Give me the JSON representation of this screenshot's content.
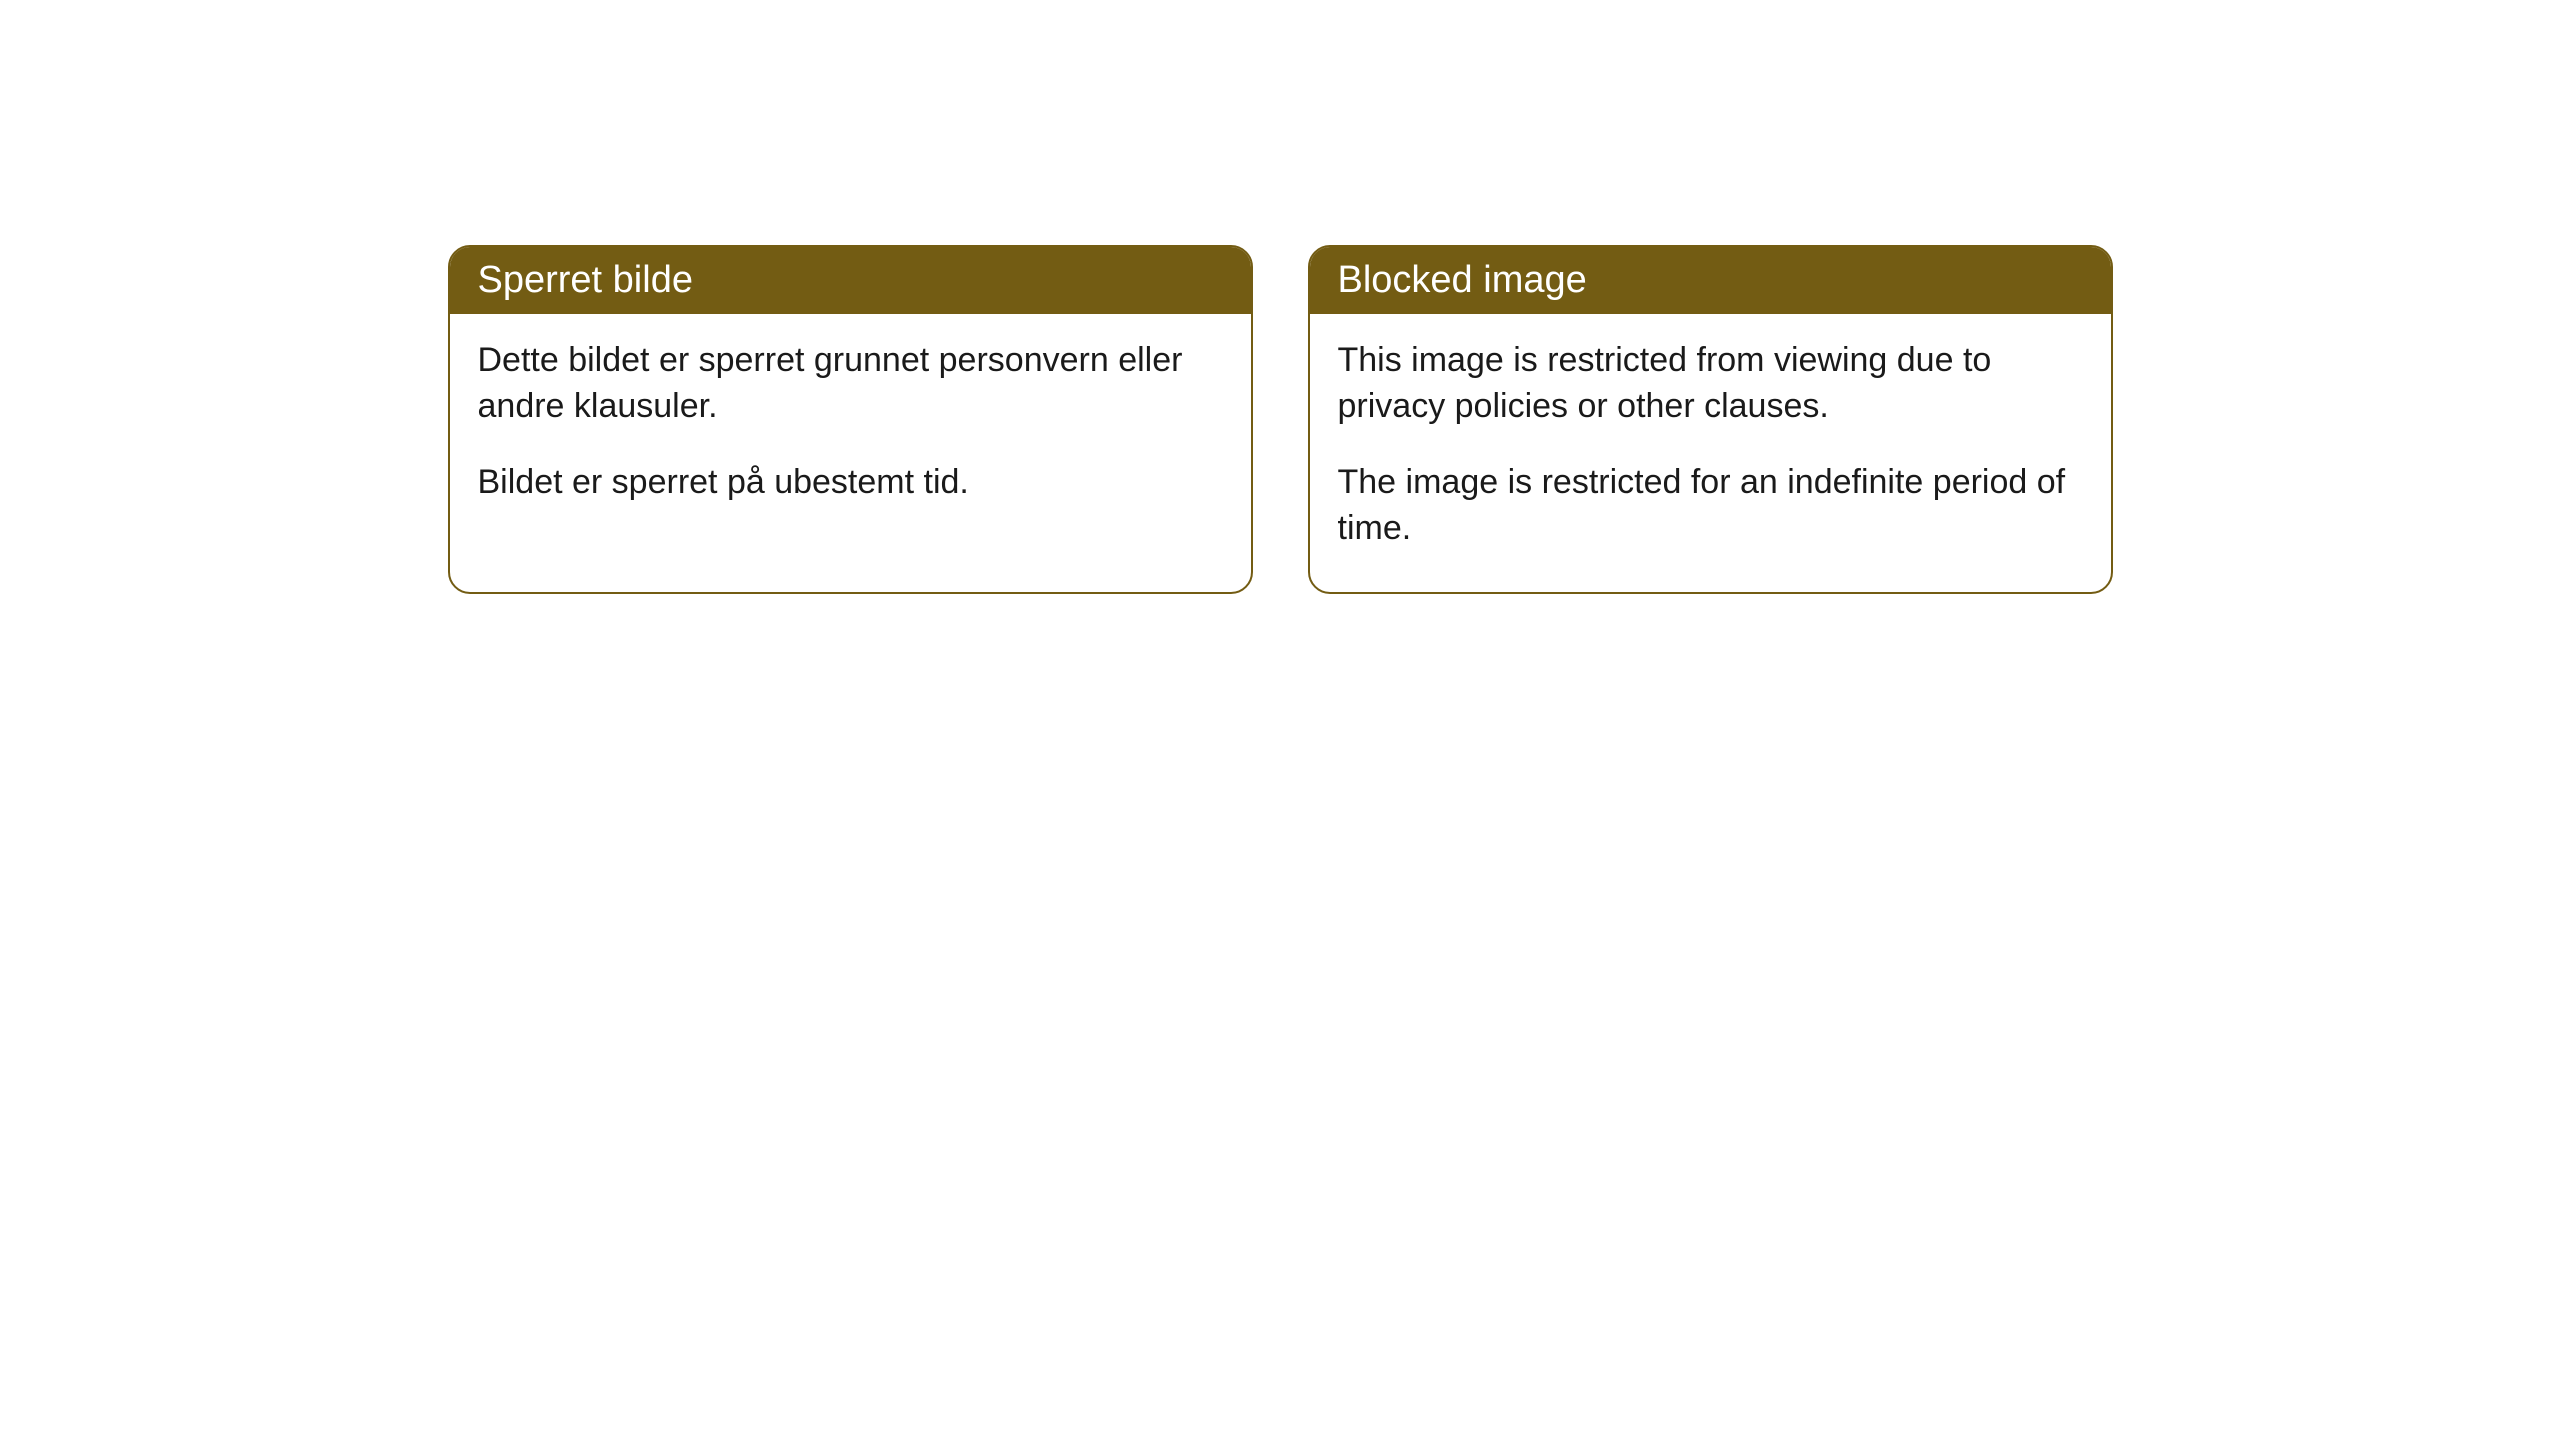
{
  "cards": [
    {
      "title": "Sperret bilde",
      "paragraph1": "Dette bildet er sperret grunnet personvern eller andre klausuler.",
      "paragraph2": "Bildet er sperret på ubestemt tid."
    },
    {
      "title": "Blocked image",
      "paragraph1": "This image is restricted from viewing due to privacy policies or other clauses.",
      "paragraph2": "The image is restricted for an indefinite period of time."
    }
  ],
  "style": {
    "header_background": "#735c13",
    "header_text_color": "#ffffff",
    "border_color": "#735c13",
    "body_text_color": "#1a1a1a",
    "background_color": "#ffffff",
    "border_radius": 22,
    "title_fontsize": 38,
    "body_fontsize": 34
  }
}
